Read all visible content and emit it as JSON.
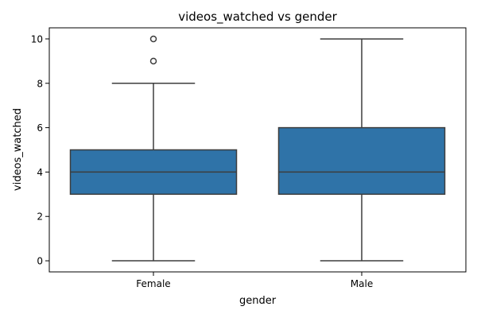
{
  "chart_data": {
    "type": "box",
    "title": "videos_watched vs gender",
    "xlabel": "gender",
    "ylabel": "videos_watched",
    "ylim": [
      -0.5,
      10.5
    ],
    "yticks": [
      0,
      2,
      4,
      6,
      8,
      10
    ],
    "categories": [
      "Female",
      "Male"
    ],
    "boxes": [
      {
        "category": "Female",
        "min": 0,
        "q1": 3,
        "median": 4,
        "q3": 5,
        "max": 8,
        "outliers": [
          9,
          10
        ]
      },
      {
        "category": "Male",
        "min": 0,
        "q1": 3,
        "median": 4,
        "q3": 6,
        "max": 10,
        "outliers": []
      }
    ],
    "colors": {
      "box_fill": "#2f73a8",
      "line": "#3d3d3d",
      "axis": "#000000",
      "background": "#ffffff"
    },
    "grid": false,
    "legend": "none"
  }
}
